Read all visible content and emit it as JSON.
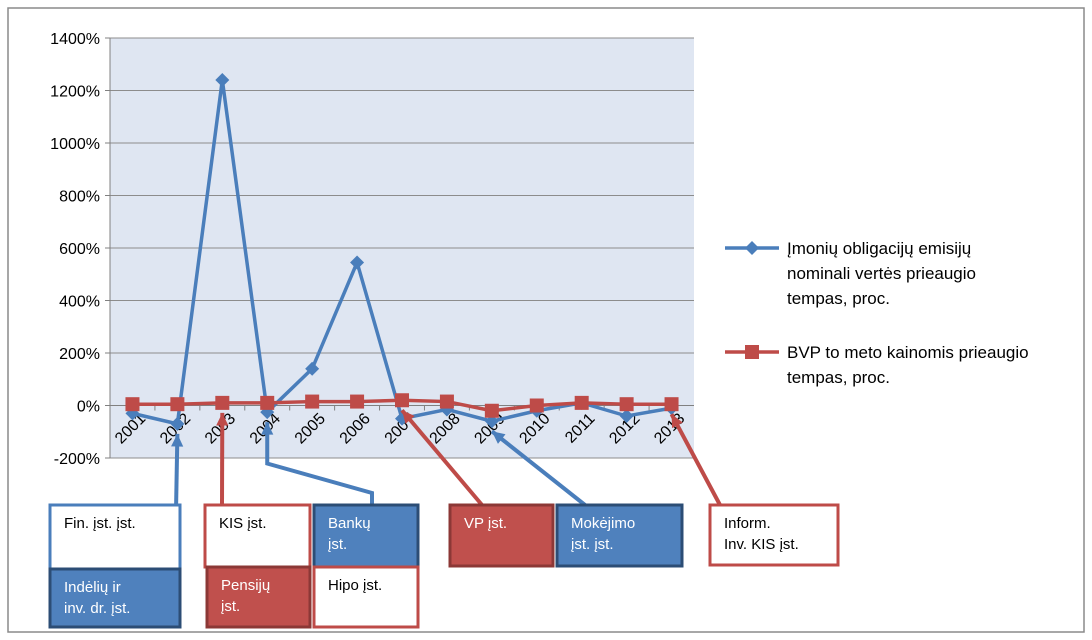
{
  "chart_data": {
    "type": "line",
    "categories": [
      "2001",
      "2002",
      "2003",
      "2004",
      "2005",
      "2006",
      "2007",
      "2008",
      "2009",
      "2010",
      "2011",
      "2012",
      "2013"
    ],
    "ylim": [
      -200,
      1400
    ],
    "yticks": [
      -200,
      0,
      200,
      400,
      600,
      800,
      1000,
      1200,
      1400
    ],
    "ytick_labels": [
      "-200%",
      "0%",
      "200%",
      "400%",
      "600%",
      "800%",
      "1000%",
      "1200%",
      "1400%"
    ],
    "grid": true,
    "legend_position": "right",
    "series": [
      {
        "name": "Įmonių obligacijų emisijų nominali vertės prieaugio tempas, proc.",
        "legend_lines": [
          "Įmonių obligacijų emisijų",
          "nominali vertės prieaugio",
          "tempas, proc."
        ],
        "color": "#4A7EBB",
        "marker": "diamond",
        "values": [
          -30,
          -70,
          1240,
          -25,
          140,
          545,
          -50,
          -15,
          -60,
          -20,
          10,
          -40,
          -10
        ]
      },
      {
        "name": "BVP to meto kainomis prieaugio tempas, proc.",
        "legend_lines": [
          "BVP to meto kainomis prieaugio",
          "tempas, proc."
        ],
        "color": "#BE4B48",
        "marker": "square",
        "values": [
          5,
          5,
          10,
          10,
          15,
          15,
          20,
          15,
          -20,
          0,
          10,
          5,
          5
        ]
      }
    ]
  },
  "annotations": [
    {
      "key": "fin",
      "lines": [
        "Fin. įst. įst."
      ],
      "style": "white-blue",
      "target_index": 1
    },
    {
      "key": "indel",
      "lines": [
        "Indėlių ir",
        "inv. dr. įst."
      ],
      "style": "blue",
      "target_index": null
    },
    {
      "key": "kis",
      "lines": [
        "KIS įst."
      ],
      "style": "white-red",
      "target_index": 2
    },
    {
      "key": "pens",
      "lines": [
        "Pensijų",
        "įst."
      ],
      "style": "red",
      "target_index": null
    },
    {
      "key": "bank",
      "lines": [
        "Bankų",
        "įst."
      ],
      "style": "blue",
      "target_index": 3
    },
    {
      "key": "hipo",
      "lines": [
        "Hipo įst."
      ],
      "style": "white-red",
      "target_index": null
    },
    {
      "key": "vp",
      "lines": [
        "VP įst."
      ],
      "style": "red",
      "target_index": 6
    },
    {
      "key": "mok",
      "lines": [
        "Mokėjimo",
        "įst. įst."
      ],
      "style": "blue",
      "target_index": 8
    },
    {
      "key": "inform",
      "lines": [
        "Inform.",
        "Inv. KIS įst."
      ],
      "style": "white-red",
      "target_index": 12
    }
  ]
}
